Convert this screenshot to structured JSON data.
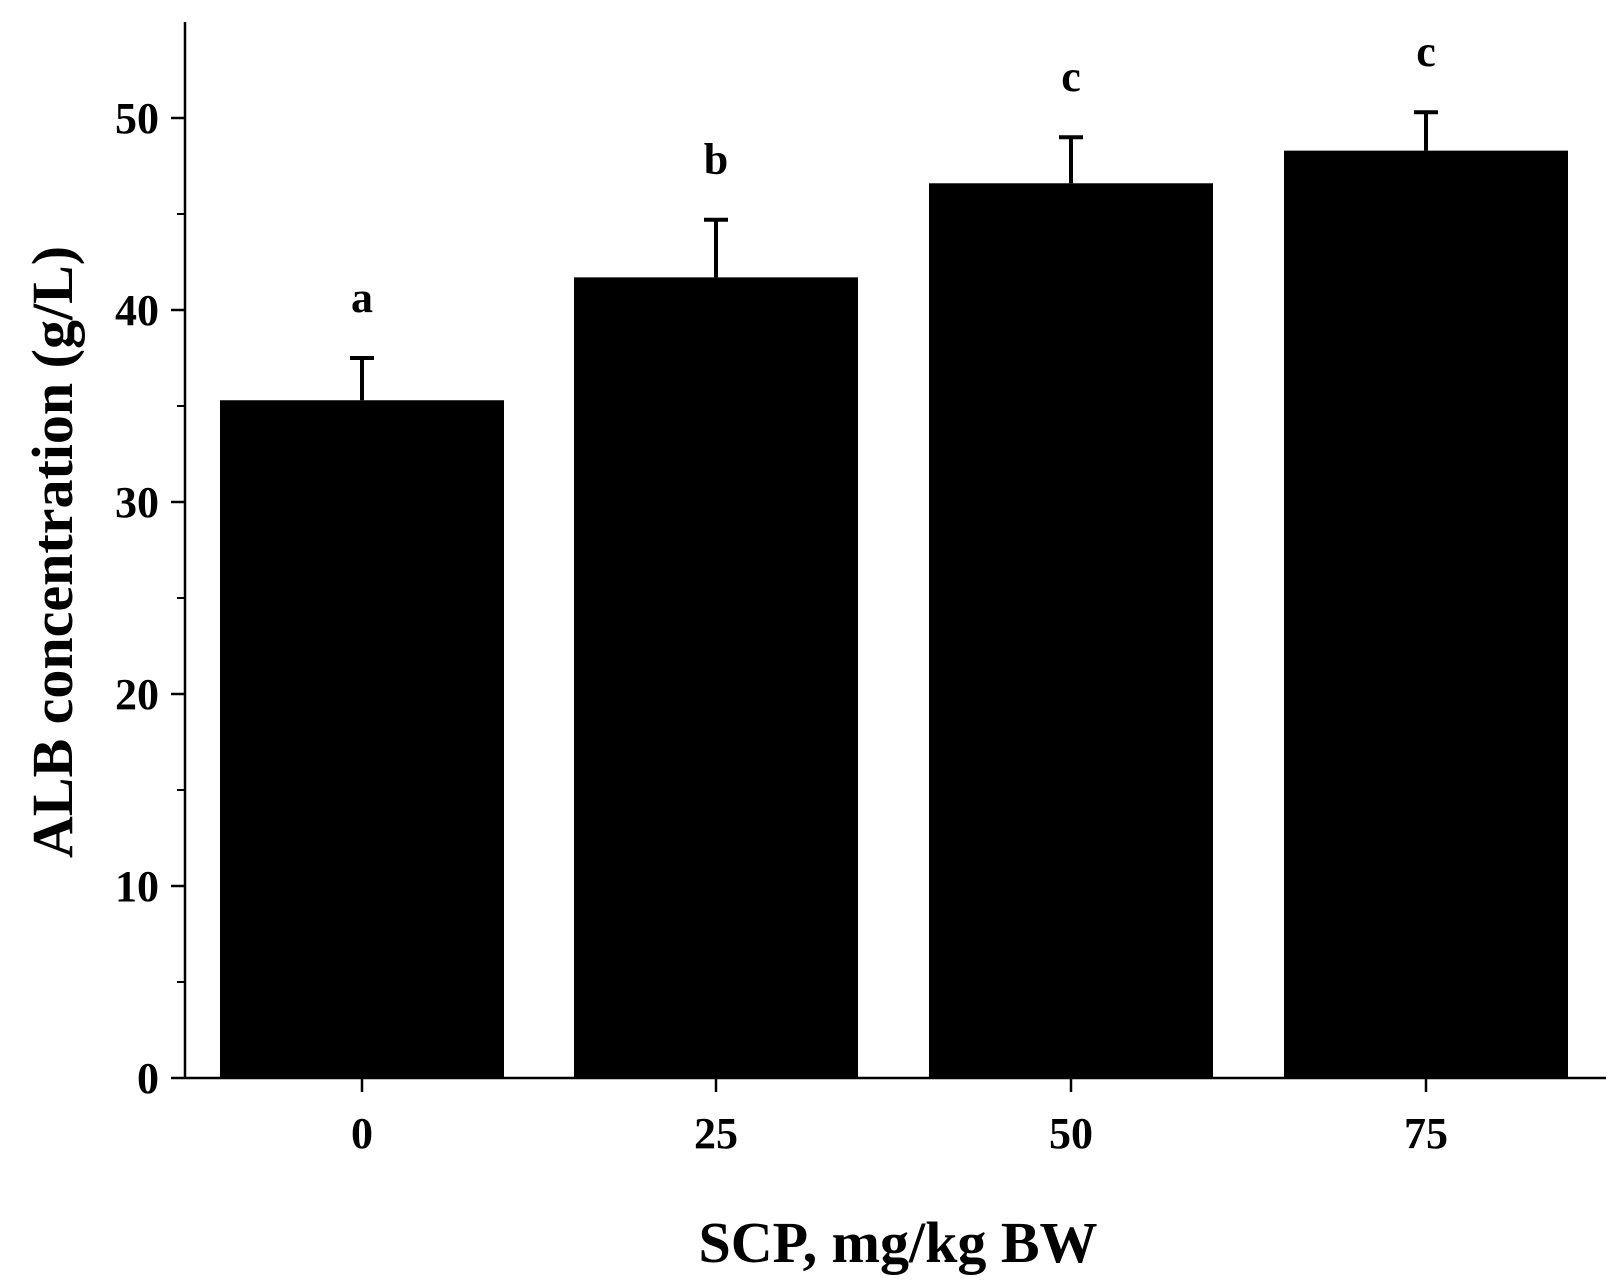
{
  "chart_data": {
    "type": "bar",
    "categories": [
      "0",
      "25",
      "50",
      "75"
    ],
    "values": [
      35.3,
      41.7,
      46.6,
      48.3
    ],
    "errors": [
      2.2,
      3.0,
      2.4,
      2.0
    ],
    "significance": [
      "a",
      "b",
      "c",
      "c"
    ],
    "xlabel": "SCP, mg/kg BW",
    "ylabel": "ALB concentration (g/L)",
    "ylim": [
      0,
      55
    ],
    "yticks": [
      0,
      10,
      20,
      30,
      40,
      50
    ],
    "grid": false,
    "colors": {
      "bar": "#000000",
      "axis": "#000000"
    }
  }
}
